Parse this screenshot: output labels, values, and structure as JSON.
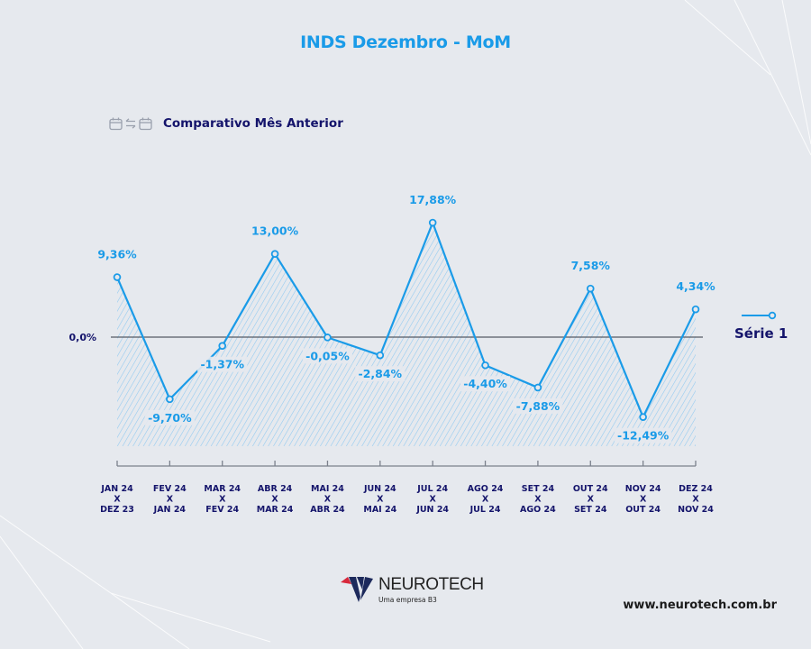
{
  "header": {
    "title": "INDS Dezembro - MoM",
    "subtitle": "Comparativo Mês Anterior",
    "subtitle_icons": [
      "calendar-icon",
      "swap-arrows-icon",
      "calendar-icon"
    ]
  },
  "chart_data": {
    "type": "area",
    "title": "INDS Dezembro - MoM",
    "subtitle": "Comparativo Mês Anterior",
    "categories": [
      [
        "JAN 24",
        "X",
        "DEZ 23"
      ],
      [
        "FEV 24",
        "X",
        "JAN 24"
      ],
      [
        "MAR 24",
        "X",
        "FEV 24"
      ],
      [
        "ABR 24",
        "X",
        "MAR 24"
      ],
      [
        "MAI 24",
        "X",
        "ABR 24"
      ],
      [
        "JUN 24",
        "X",
        "MAI 24"
      ],
      [
        "JUL 24",
        "X",
        "JUN 24"
      ],
      [
        "AGO 24",
        "X",
        "JUL 24"
      ],
      [
        "SET 24",
        "X",
        "AGO 24"
      ],
      [
        "OUT 24",
        "X",
        "SET 24"
      ],
      [
        "NOV 24",
        "X",
        "OUT 24"
      ],
      [
        "DEZ 24",
        "X",
        "NOV 24"
      ]
    ],
    "series": [
      {
        "name": "Série 1",
        "color": "#1a9be8",
        "values": [
          9.36,
          -9.7,
          -1.37,
          13.0,
          -0.05,
          -2.84,
          17.88,
          -4.4,
          -7.88,
          7.58,
          -12.49,
          4.34
        ],
        "labels": [
          "9,36%",
          "-9,70%",
          "-1,37%",
          "13,00%",
          "-0,05%",
          "-2,84%",
          "17,88%",
          "-4,40%",
          "-7,88%",
          "7,58%",
          "-12,49%",
          "4,34%"
        ]
      }
    ],
    "zero_label": "0,0%",
    "xlabel": "",
    "ylabel": "",
    "ylim": [
      -17,
      20
    ],
    "legend": {
      "position": "right",
      "label": "Série 1"
    },
    "grid": false,
    "fill": "hatched"
  },
  "footer": {
    "brand": "NEUROTECH",
    "tagline": "Uma empresa B3",
    "website": "www.neurotech.com.br"
  },
  "colors": {
    "accent": "#1a9be8",
    "navy": "#14146b",
    "background": "#e6e9ee",
    "logo_red": "#d8283b",
    "logo_navy": "#1d2a5c"
  }
}
